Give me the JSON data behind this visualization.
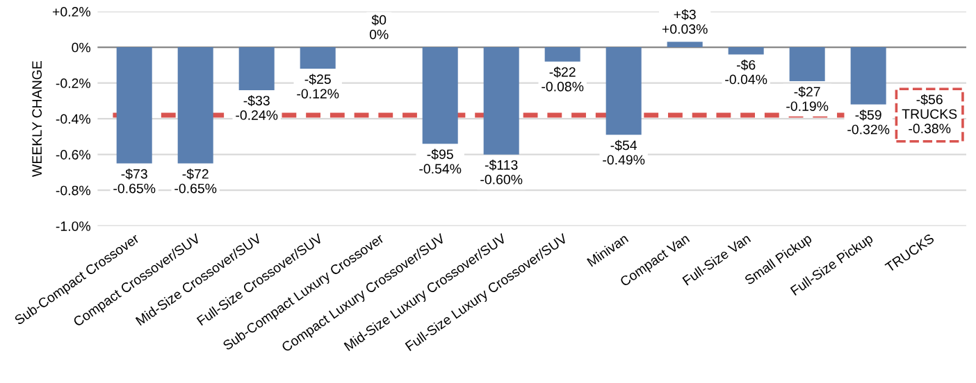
{
  "chart_data": {
    "type": "bar",
    "ylabel": "WEEKLY CHANGE",
    "categories": [
      "Sub-Compact Crossover",
      "Compact Crossover/SUV",
      "Mid-Size Crossover/SUV",
      "Full-Size Crossover/SUV",
      "Sub-Compact Luxury Crossover",
      "Compact Luxury Crossover/SUV",
      "Mid-Size Luxury Crossover/SUV",
      "Full-Size Luxury Crossover/SUV",
      "Minivan",
      "Compact Van",
      "Full-Size Van",
      "Small Pickup",
      "Full-Size Pickup",
      "TRUCKS"
    ],
    "values": [
      -0.65,
      -0.65,
      -0.24,
      -0.12,
      0,
      -0.54,
      -0.6,
      -0.08,
      -0.49,
      0.03,
      -0.04,
      -0.19,
      -0.32,
      null
    ],
    "value_labels": [
      "-$73\n-0.65%",
      "-$72\n-0.65%",
      "-$33\n-0.24%",
      "-$25\n-0.12%",
      "$0\n0%",
      "-$95\n-0.54%",
      "-$113\n-0.60%",
      "-$22\n-0.08%",
      "-$54\n-0.49%",
      "+$3\n+0.03%",
      "-$6\n-0.04%",
      "-$27\n-0.19%",
      "-$59\n-0.32%",
      null
    ],
    "color": "#5a7fb0",
    "ylim": [
      -1.0,
      0.2
    ],
    "yticks": [
      {
        "value": 0.2,
        "label": "+0.2%"
      },
      {
        "value": 0,
        "label": "0%"
      },
      {
        "value": -0.2,
        "label": "-0.2%"
      },
      {
        "value": -0.4,
        "label": "-0.4%"
      },
      {
        "value": -0.6,
        "label": "-0.6%"
      },
      {
        "value": -0.8,
        "label": "-0.8%"
      },
      {
        "value": -1.0,
        "label": "-1.0%"
      }
    ],
    "grid": "y",
    "ref_lines": [
      {
        "axis": "y",
        "value": -0.38,
        "label": "-$56\nTRUCKS\n-0.38%",
        "color": "#d9534f",
        "line_style": "dashed"
      }
    ]
  }
}
